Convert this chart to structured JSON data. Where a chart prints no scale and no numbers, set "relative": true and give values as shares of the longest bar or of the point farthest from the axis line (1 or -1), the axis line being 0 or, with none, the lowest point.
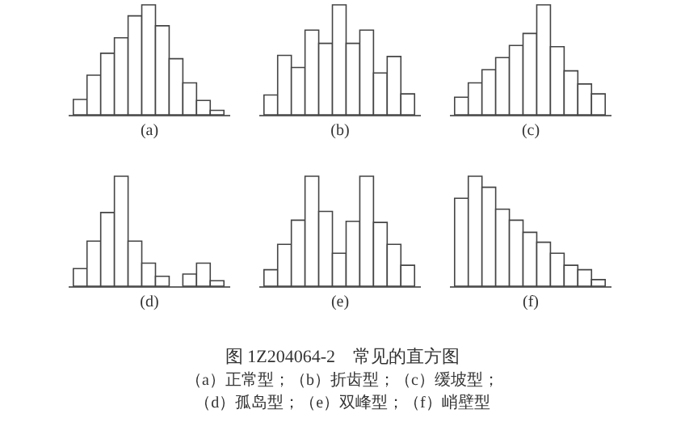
{
  "chart_data": [
    {
      "type": "bar",
      "relative": true,
      "xlabel": "(a)",
      "color": "#ffffff",
      "categories": [
        null,
        null,
        null,
        null,
        null,
        null,
        null,
        null,
        null,
        null,
        null
      ],
      "values": [
        0.14,
        0.36,
        0.56,
        0.7,
        0.9,
        1,
        0.81,
        0.51,
        0.29,
        0.13,
        0.04
      ]
    },
    {
      "type": "bar",
      "relative": true,
      "xlabel": "(b)",
      "color": "#ffffff",
      "categories": [
        null,
        null,
        null,
        null,
        null,
        null,
        null,
        null,
        null,
        null,
        null
      ],
      "values": [
        0.18,
        0.54,
        0.43,
        0.77,
        0.65,
        1,
        0.65,
        0.77,
        0.38,
        0.53,
        0.19
      ]
    },
    {
      "type": "bar",
      "relative": true,
      "xlabel": "(c)",
      "color": "#ffffff",
      "categories": [
        null,
        null,
        null,
        null,
        null,
        null,
        null,
        null,
        null,
        null,
        null
      ],
      "values": [
        0.16,
        0.29,
        0.41,
        0.52,
        0.63,
        0.74,
        1,
        0.62,
        0.4,
        0.28,
        0.19
      ]
    },
    {
      "type": "bar",
      "relative": true,
      "xlabel": "(d)",
      "color": "#ffffff",
      "categories": [
        null,
        null,
        null,
        null,
        null,
        null,
        null,
        null,
        null,
        null,
        null
      ],
      "values": [
        0.16,
        0.41,
        0.67,
        1,
        0.41,
        0.21,
        0.09,
        null,
        0.11,
        0.21,
        0.05
      ]
    },
    {
      "type": "bar",
      "relative": true,
      "xlabel": "(e)",
      "color": "#ffffff",
      "categories": [
        null,
        null,
        null,
        null,
        null,
        null,
        null,
        null,
        null,
        null,
        null
      ],
      "values": [
        0.15,
        0.38,
        0.6,
        1,
        0.68,
        0.3,
        0.59,
        1,
        0.58,
        0.38,
        0.19
      ]
    },
    {
      "type": "bar",
      "relative": true,
      "xlabel": "(f)",
      "color": "#ffffff",
      "categories": [
        null,
        null,
        null,
        null,
        null,
        null,
        null,
        null,
        null,
        null,
        null
      ],
      "values": [
        0.8,
        1,
        0.9,
        0.7,
        0.6,
        0.49,
        0.4,
        0.3,
        0.19,
        0.15,
        0.06
      ]
    },
    {
      "type": "other",
      "title": "图 1Z204064-2　常见的直方图",
      "annotations": [
        "（a）正常型；（b）折齿型；（c）缓坡型；",
        "（d）孤岛型；（e）双峰型；（f）峭壁型"
      ]
    }
  ]
}
